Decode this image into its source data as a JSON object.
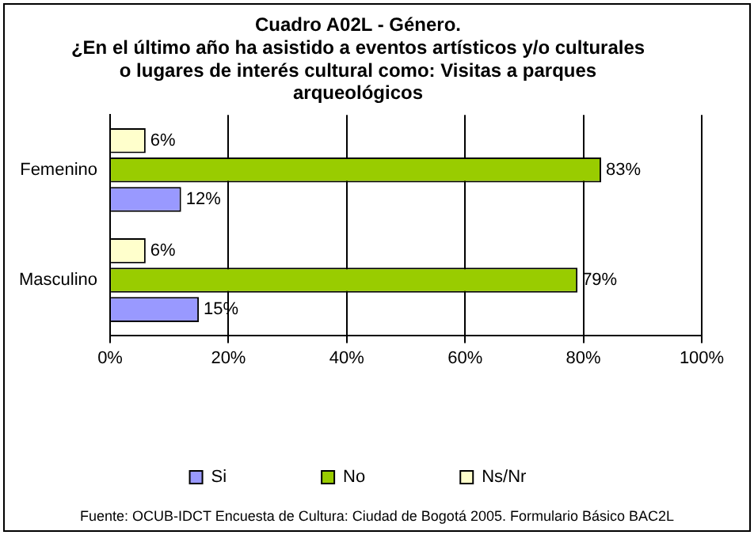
{
  "chart_data": {
    "type": "bar",
    "orientation": "horizontal",
    "title": "Cuadro A02L - Género.\n¿En el último año ha asistido a eventos artísticos y/o culturales\no lugares de interés cultural como: Visitas a parques\narqueológicos",
    "categories": [
      "Femenino",
      "Masculino"
    ],
    "series": [
      {
        "name": "Si",
        "color": "#9999ff",
        "values": [
          12,
          15
        ],
        "value_labels": [
          "12%",
          "15%"
        ]
      },
      {
        "name": "No",
        "color": "#99cc00",
        "values": [
          83,
          79
        ],
        "value_labels": [
          "83%",
          "79%"
        ]
      },
      {
        "name": "Ns/Nr",
        "color": "#ffffcc",
        "values": [
          6,
          6
        ],
        "value_labels": [
          "6%",
          "6%"
        ]
      }
    ],
    "xlim": [
      0,
      100
    ],
    "xticks": [
      {
        "value": 0,
        "label": "0%"
      },
      {
        "value": 20,
        "label": "20%"
      },
      {
        "value": 40,
        "label": "40%"
      },
      {
        "value": 60,
        "label": "60%"
      },
      {
        "value": 80,
        "label": "80%"
      },
      {
        "value": 100,
        "label": "100%"
      }
    ],
    "grid": "x",
    "legend": "bottom",
    "annotations": [
      "Fuente: OCUB-IDCT Encuesta de Cultura: Ciudad de Bogotá 2005. Formulario Básico BAC2L"
    ]
  }
}
